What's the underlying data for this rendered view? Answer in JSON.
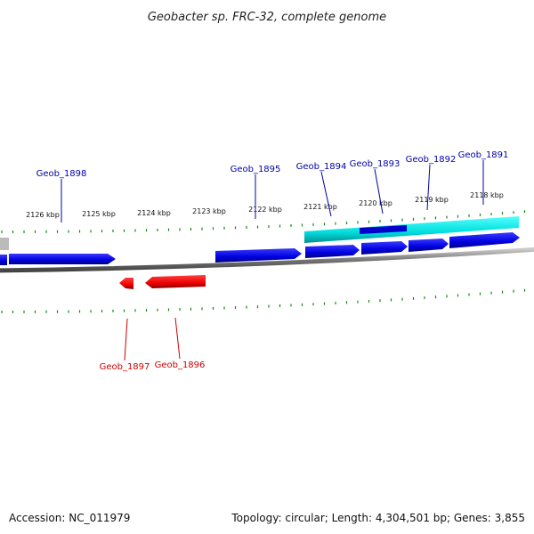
{
  "title": "Geobacter sp. FRC-32, complete genome",
  "footer": {
    "accession": "Accession: NC_011979",
    "summary": "Topology: circular; Length: 4,304,501 bp; Genes: 3,855"
  },
  "colors": {
    "forward_gene": "#0000ee",
    "reverse_gene": "#ee0000",
    "highlight": "#00dddd",
    "tick": "#118811",
    "backbone": "#888888",
    "forward_label": "#0000aa",
    "reverse_label": "#cc0000"
  },
  "ticks": [
    "2126 kbp",
    "2125 kbp",
    "2124 kbp",
    "2123 kbp",
    "2122 kbp",
    "2121 kbp",
    "2120 kbp",
    "2119 kbp",
    "2118 kbp"
  ],
  "genes_forward": [
    "Geob_1898",
    "Geob_1895",
    "Geob_1894",
    "Geob_1893",
    "Geob_1892",
    "Geob_1891"
  ],
  "genes_reverse": [
    "Geob_1897",
    "Geob_1896"
  ]
}
